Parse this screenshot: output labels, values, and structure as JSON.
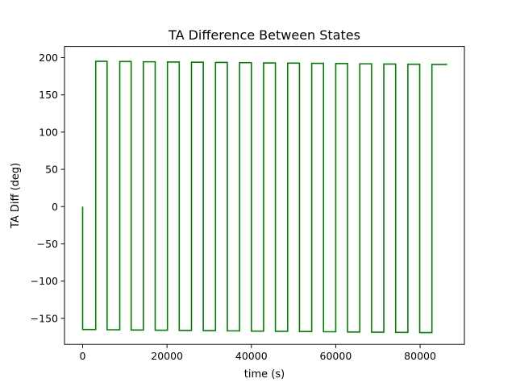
{
  "chart_data": {
    "type": "line",
    "title": "TA Difference Between States",
    "xlabel": "time (s)",
    "ylabel": "TA Diff (deg)",
    "xlim": [
      -4300,
      90500
    ],
    "ylim": [
      -185,
      215
    ],
    "xticks": [
      0,
      20000,
      40000,
      60000,
      80000
    ],
    "xtick_labels": [
      "0",
      "20000",
      "40000",
      "60000",
      "80000"
    ],
    "yticks": [
      -150,
      -100,
      -50,
      0,
      50,
      100,
      150,
      200
    ],
    "ytick_labels": [
      "−150",
      "−100",
      "−50",
      "0",
      "50",
      "100",
      "150",
      "200"
    ],
    "grid": false,
    "legend": "none",
    "colors": {
      "series": "#008000"
    },
    "series": [
      {
        "x": [
          0,
          0,
          3100,
          3100,
          5800,
          5800,
          8800,
          8800,
          11500,
          11500,
          14400,
          14400,
          17200,
          17200,
          20100,
          20100,
          22900,
          22900,
          25800,
          25800,
          28600,
          28600,
          31500,
          31500,
          34300,
          34300,
          37200,
          37200,
          40000,
          40000,
          42900,
          42900,
          45700,
          45700,
          48600,
          48600,
          51400,
          51400,
          54300,
          54300,
          57100,
          57100,
          60000,
          60000,
          62800,
          62800,
          65700,
          65700,
          68500,
          68500,
          71400,
          71400,
          74200,
          74200,
          77100,
          77100,
          79900,
          79900,
          82800,
          82800,
          85600,
          85600,
          86400
        ],
        "y": [
          0,
          -165,
          -165,
          195,
          195,
          -165.3,
          -165.3,
          194.7,
          194.7,
          -165.6,
          -165.6,
          194.4,
          194.4,
          -165.9,
          -165.9,
          194.1,
          194.1,
          -166.2,
          -166.2,
          193.8,
          193.8,
          -166.5,
          -166.5,
          193.5,
          193.5,
          -166.8,
          -166.8,
          193.2,
          193.2,
          -167.1,
          -167.1,
          192.9,
          192.9,
          -167.4,
          -167.4,
          192.6,
          192.6,
          -167.7,
          -167.7,
          192.3,
          192.3,
          -168.0,
          -168.0,
          192.0,
          192.0,
          -168.3,
          -168.3,
          191.7,
          191.7,
          -168.6,
          -168.6,
          191.4,
          191.4,
          -168.9,
          -168.9,
          191.1,
          191.1,
          -169.2,
          -169.2,
          190.8,
          190.8,
          190.8,
          190.8
        ]
      }
    ]
  }
}
